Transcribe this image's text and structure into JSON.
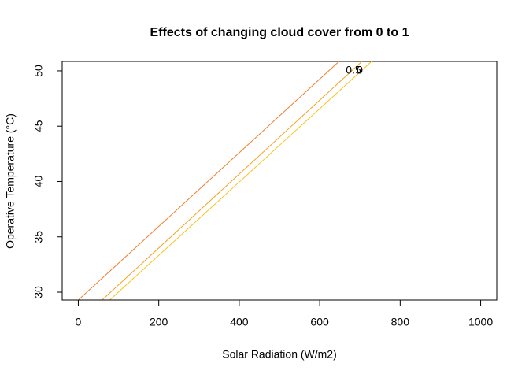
{
  "chart_data": {
    "type": "line",
    "title": "Effects of changing cloud cover from 0 to 1",
    "x_label": "Solar Radiation (W/m2)",
    "y_label": "Operative Temperature (°C)",
    "series": [
      {
        "color": "#f07d2e",
        "x": [
          0,
          648
        ],
        "values": [
          29.29,
          50.85
        ]
      },
      {
        "color": "#f5a020",
        "x": [
          59,
          705
        ],
        "values": [
          29.29,
          50.85
        ]
      },
      {
        "color": "#f7c31a",
        "x": [
          78,
          729
        ],
        "values": [
          29.29,
          50.85
        ]
      }
    ],
    "annotations": [
      "0.5",
      "0"
    ],
    "xlim": [
      -40,
      1040
    ],
    "ylim": [
      29.29,
      50.85
    ],
    "xticks": [
      0,
      200,
      400,
      600,
      800,
      1000
    ],
    "yticks": [
      30,
      35,
      40,
      45,
      50
    ]
  }
}
